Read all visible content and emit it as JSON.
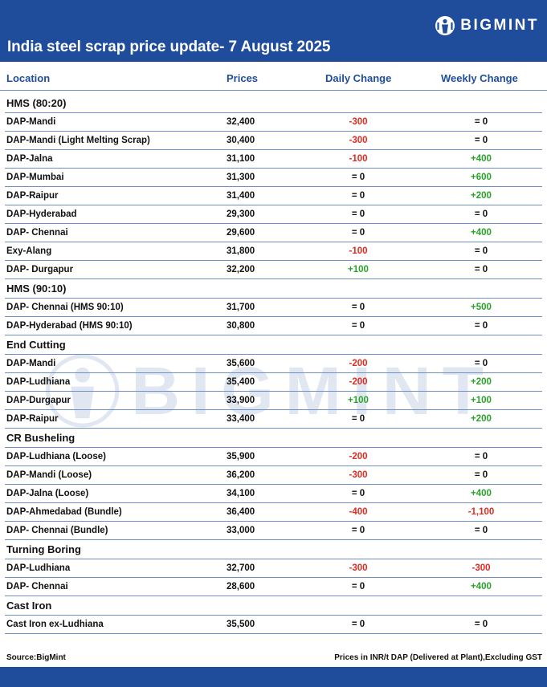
{
  "header": {
    "title": "India steel scrap price update- 7 August 2025",
    "brand": "BIGMINT",
    "brand_icon": "bigmint-logo-icon"
  },
  "columns": {
    "location": "Location",
    "prices": "Prices",
    "daily": "Daily Change",
    "weekly": "Weekly Change"
  },
  "sections": [
    {
      "name": "HMS (80:20)",
      "rows": [
        {
          "location": "DAP-Mandi",
          "price": "32,400",
          "daily": "-300",
          "weekly": "= 0"
        },
        {
          "location": "DAP-Mandi (Light Melting Scrap)",
          "price": "30,400",
          "daily": "-300",
          "weekly": "= 0"
        },
        {
          "location": "DAP-Jalna",
          "price": "31,100",
          "daily": "-100",
          "weekly": "+400"
        },
        {
          "location": "DAP-Mumbai",
          "price": "31,300",
          "daily": "= 0",
          "weekly": "+600"
        },
        {
          "location": "DAP-Raipur",
          "price": "31,400",
          "daily": "= 0",
          "weekly": "+200"
        },
        {
          "location": "DAP-Hyderabad",
          "price": "29,300",
          "daily": "= 0",
          "weekly": "= 0"
        },
        {
          "location": "DAP- Chennai",
          "price": "29,600",
          "daily": "= 0",
          "weekly": "+400"
        },
        {
          "location": "Exy-Alang",
          "price": "31,800",
          "daily": "-100",
          "weekly": "= 0"
        },
        {
          "location": "DAP- Durgapur",
          "price": "32,200",
          "daily": "+100",
          "weekly": "= 0"
        }
      ]
    },
    {
      "name": "HMS (90:10)",
      "rows": [
        {
          "location": "DAP- Chennai (HMS 90:10)",
          "price": "31,700",
          "daily": "= 0",
          "weekly": "+500"
        },
        {
          "location": "DAP-Hyderabad (HMS 90:10)",
          "price": "30,800",
          "daily": "= 0",
          "weekly": "= 0"
        }
      ]
    },
    {
      "name": "End Cutting",
      "rows": [
        {
          "location": "DAP-Mandi",
          "price": "35,600",
          "daily": "-200",
          "weekly": "= 0"
        },
        {
          "location": "DAP-Ludhiana",
          "price": "35,400",
          "daily": "-200",
          "weekly": "+200"
        },
        {
          "location": "DAP-Durgapur",
          "price": "33,900",
          "daily": "+100",
          "weekly": "+100"
        },
        {
          "location": "DAP-Raipur",
          "price": "33,400",
          "daily": "= 0",
          "weekly": "+200"
        }
      ]
    },
    {
      "name": "CR Busheling",
      "rows": [
        {
          "location": "DAP-Ludhiana (Loose)",
          "price": "35,900",
          "daily": "-200",
          "weekly": "= 0"
        },
        {
          "location": "DAP-Mandi (Loose)",
          "price": "36,200",
          "daily": "-300",
          "weekly": "= 0"
        },
        {
          "location": "DAP-Jalna (Loose)",
          "price": "34,100",
          "daily": "= 0",
          "weekly": "+400"
        },
        {
          "location": "DAP-Ahmedabad (Bundle)",
          "price": "36,400",
          "daily": "-400",
          "weekly": "-1,100"
        },
        {
          "location": "DAP- Chennai (Bundle)",
          "price": "33,000",
          "daily": "= 0",
          "weekly": "= 0"
        }
      ]
    },
    {
      "name": "Turning Boring",
      "rows": [
        {
          "location": "DAP-Ludhiana",
          "price": "32,700",
          "daily": "-300",
          "weekly": "-300"
        },
        {
          "location": "DAP- Chennai",
          "price": "28,600",
          "daily": "= 0",
          "weekly": "+400"
        }
      ]
    },
    {
      "name": "Cast Iron",
      "rows": [
        {
          "location": "Cast Iron ex-Ludhiana",
          "price": "35,500",
          "daily": "= 0",
          "weekly": "= 0"
        }
      ]
    }
  ],
  "footer": {
    "source": "Source:BigMint",
    "note": "Prices in INR/t DAP (Delivered at Plant),Excluding GST"
  },
  "watermark": "BIGMINT",
  "colors": {
    "brand_blue": "#1f4d9c",
    "negative": "#e02b20",
    "positive": "#2aa32a",
    "rule": "#6f8ec3"
  }
}
